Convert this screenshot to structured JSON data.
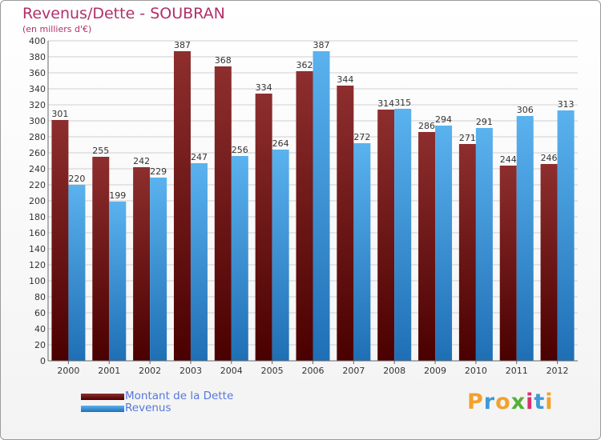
{
  "chart_data": {
    "type": "bar",
    "title": "Revenus/Dette - SOUBRAN",
    "subtitle": "(en milliers d'€)",
    "categories": [
      "2000",
      "2001",
      "2002",
      "2003",
      "2004",
      "2005",
      "2006",
      "2007",
      "2008",
      "2009",
      "2010",
      "2011",
      "2012"
    ],
    "series": [
      {
        "name": "Montant de la Dette",
        "values": [
          301,
          255,
          242,
          387,
          368,
          334,
          362,
          344,
          314,
          286,
          271,
          244,
          246
        ],
        "color": "#7a1515"
      },
      {
        "name": "Revenus",
        "values": [
          220,
          199,
          229,
          247,
          256,
          264,
          387,
          272,
          315,
          294,
          291,
          306,
          313
        ],
        "color": "#4da6e8"
      }
    ],
    "ylim": [
      0,
      400
    ],
    "ytick_step": 20,
    "grid": true,
    "legend_position": "bottom-left"
  },
  "logo": {
    "letters": [
      "P",
      "r",
      "o",
      "x",
      "i",
      "t",
      "i"
    ],
    "colors": [
      "#f2a12a",
      "#3e9ad6",
      "#f2a12a",
      "#55b03a",
      "#d8326b",
      "#3e9ad6",
      "#f2a12a"
    ]
  }
}
